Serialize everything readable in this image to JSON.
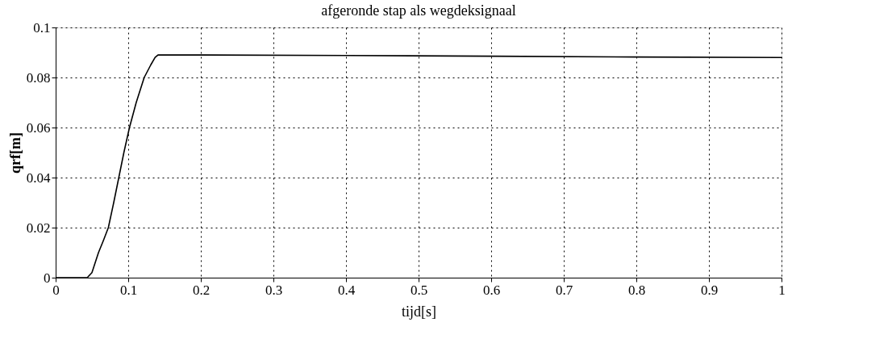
{
  "chart_data": {
    "type": "line",
    "title": "afgeronde stap als wegdeksignaal",
    "xlabel": "tijd[s]",
    "ylabel": "qrf[m]",
    "x": [
      0,
      0.0435,
      0.05,
      0.059,
      0.066,
      0.0726,
      0.08,
      0.087,
      0.094,
      0.1017,
      0.111,
      0.122,
      0.131,
      0.137,
      0.141,
      0.2,
      0.4,
      0.6,
      0.8,
      1.0
    ],
    "series": [
      {
        "color": "#000000",
        "values": [
          0,
          0,
          0.002,
          0.01,
          0.015,
          0.02,
          0.03,
          0.04,
          0.05,
          0.06,
          0.07,
          0.08,
          0.085,
          0.088,
          0.089,
          0.089,
          0.0888,
          0.0885,
          0.0882,
          0.088
        ]
      }
    ],
    "xlim": [
      0,
      1
    ],
    "xticks": [
      0,
      0.1,
      0.2,
      0.3,
      0.4,
      0.5,
      0.6,
      0.7,
      0.8,
      0.9,
      1
    ],
    "ylim": [
      0,
      0.1
    ],
    "yticks": [
      0,
      0.02,
      0.04,
      0.06,
      0.08,
      0.1
    ],
    "grid": true,
    "marker": "none",
    "line_style": "solid"
  }
}
